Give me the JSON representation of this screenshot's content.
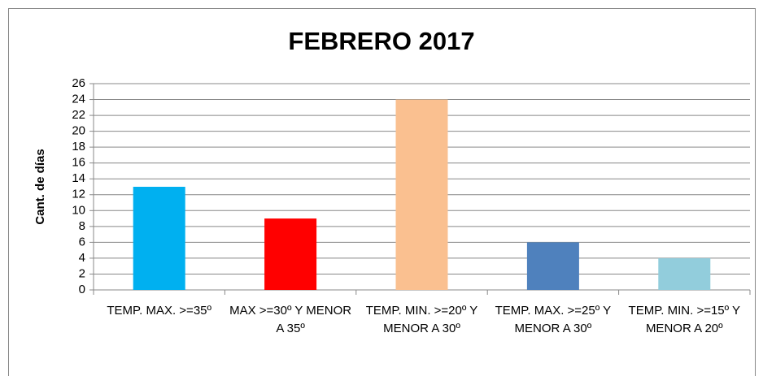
{
  "chart_data": {
    "type": "bar",
    "title": "FEBRERO 2017",
    "y_label": "Cant. de días",
    "categories": [
      "TEMP. MAX. >=35º",
      "MAX >=30º Y MENOR A 35º",
      "TEMP. MIN. >=20º Y MENOR A 30º",
      "TEMP. MAX. >=25º Y MENOR A 30º",
      "TEMP. MIN. >=15º Y MENOR A 20º"
    ],
    "values": [
      13,
      9,
      24,
      6,
      4
    ],
    "colors": [
      "#00b0f0",
      "#ff0000",
      "#fac090",
      "#4f81bd",
      "#92cddc"
    ],
    "ylim": [
      0,
      26
    ],
    "yticks": [
      0,
      2,
      4,
      6,
      8,
      10,
      12,
      14,
      16,
      18,
      20,
      22,
      24,
      26
    ],
    "grid": true
  }
}
